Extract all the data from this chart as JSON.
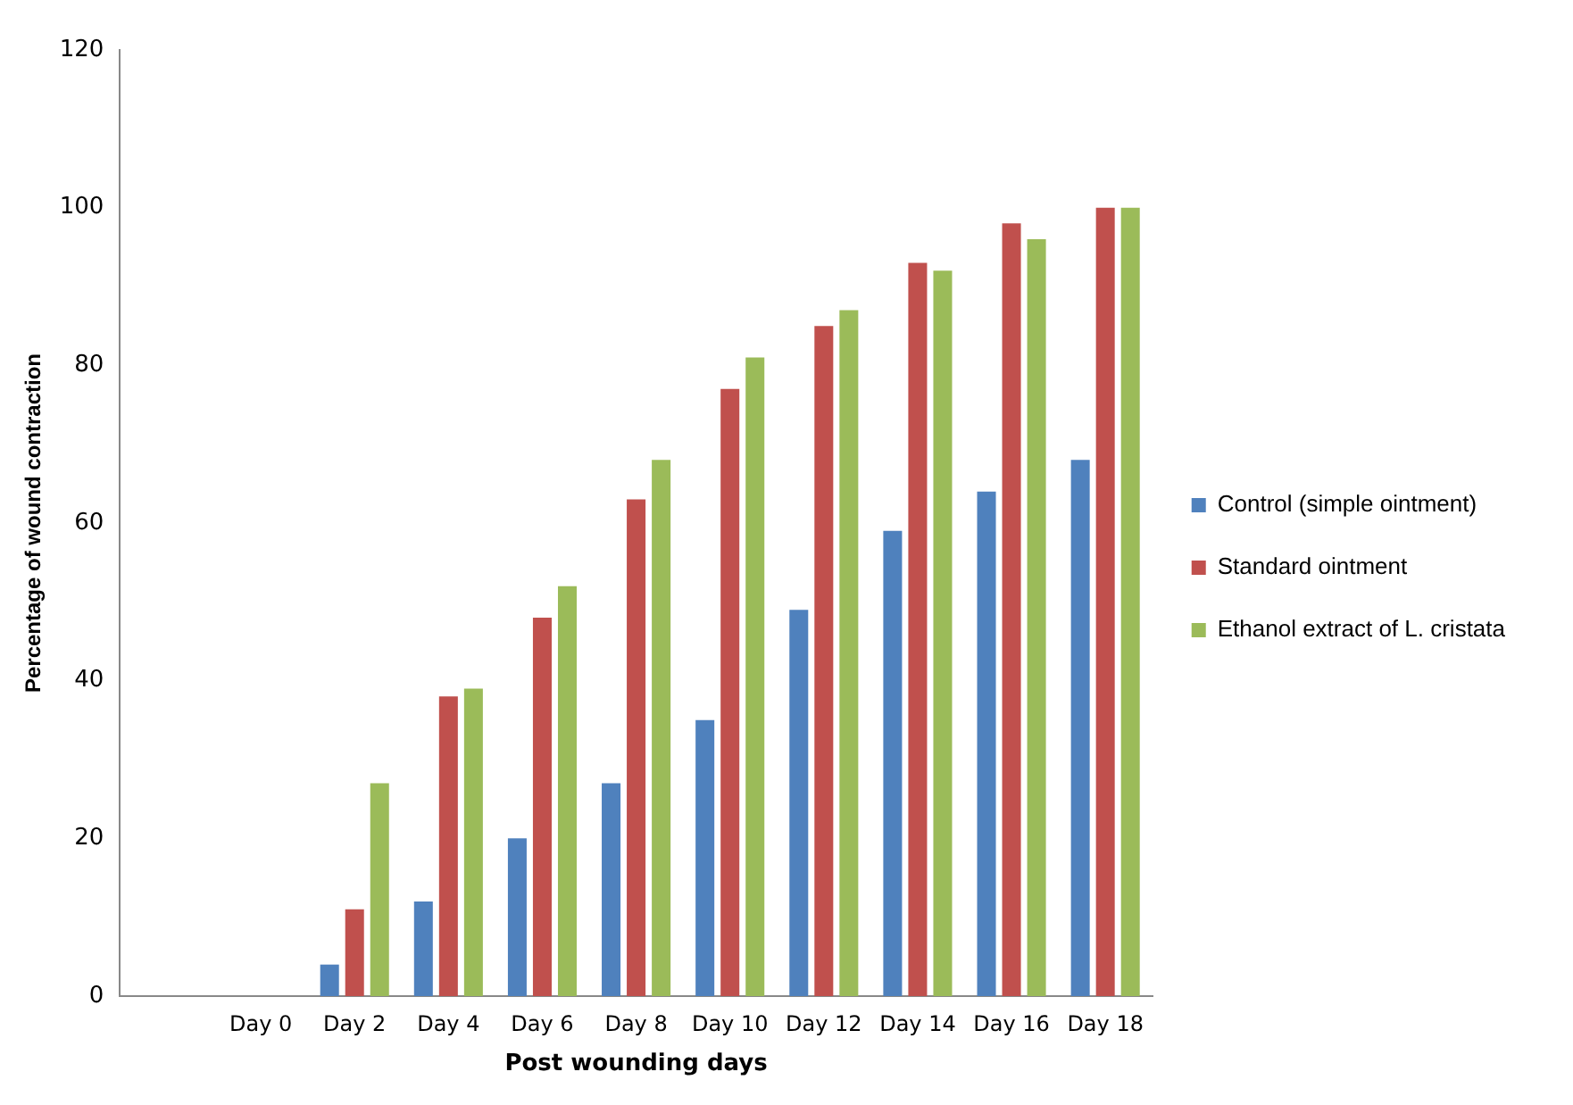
{
  "chart_data": {
    "type": "bar",
    "xlabel": "Post wounding days",
    "ylabel": "Percentage of wound contraction",
    "categories": [
      null,
      "Day 0",
      "Day 2",
      "Day 4",
      "Day 6",
      "Day 8",
      "Day 10",
      "Day 12",
      "Day 14",
      "Day 16",
      "Day 18"
    ],
    "series": [
      {
        "name": "Control (simple ointment)",
        "color": "#4f81bd",
        "values": [
          null,
          0,
          4,
          12,
          20,
          27,
          35,
          49,
          59,
          64,
          68
        ]
      },
      {
        "name": "Standard ointment",
        "color": "#c0504d",
        "values": [
          null,
          0,
          11,
          38,
          48,
          63,
          77,
          85,
          93,
          98,
          100
        ]
      },
      {
        "name": "Ethanol extract of L. cristata",
        "color": "#9bbb59",
        "values": [
          null,
          0,
          27,
          39,
          52,
          68,
          81,
          87,
          92,
          96,
          100
        ]
      }
    ],
    "ylim": [
      0,
      120
    ],
    "yticks": [
      0,
      20,
      40,
      60,
      80,
      100,
      120
    ],
    "grid": false,
    "legend": "right"
  }
}
